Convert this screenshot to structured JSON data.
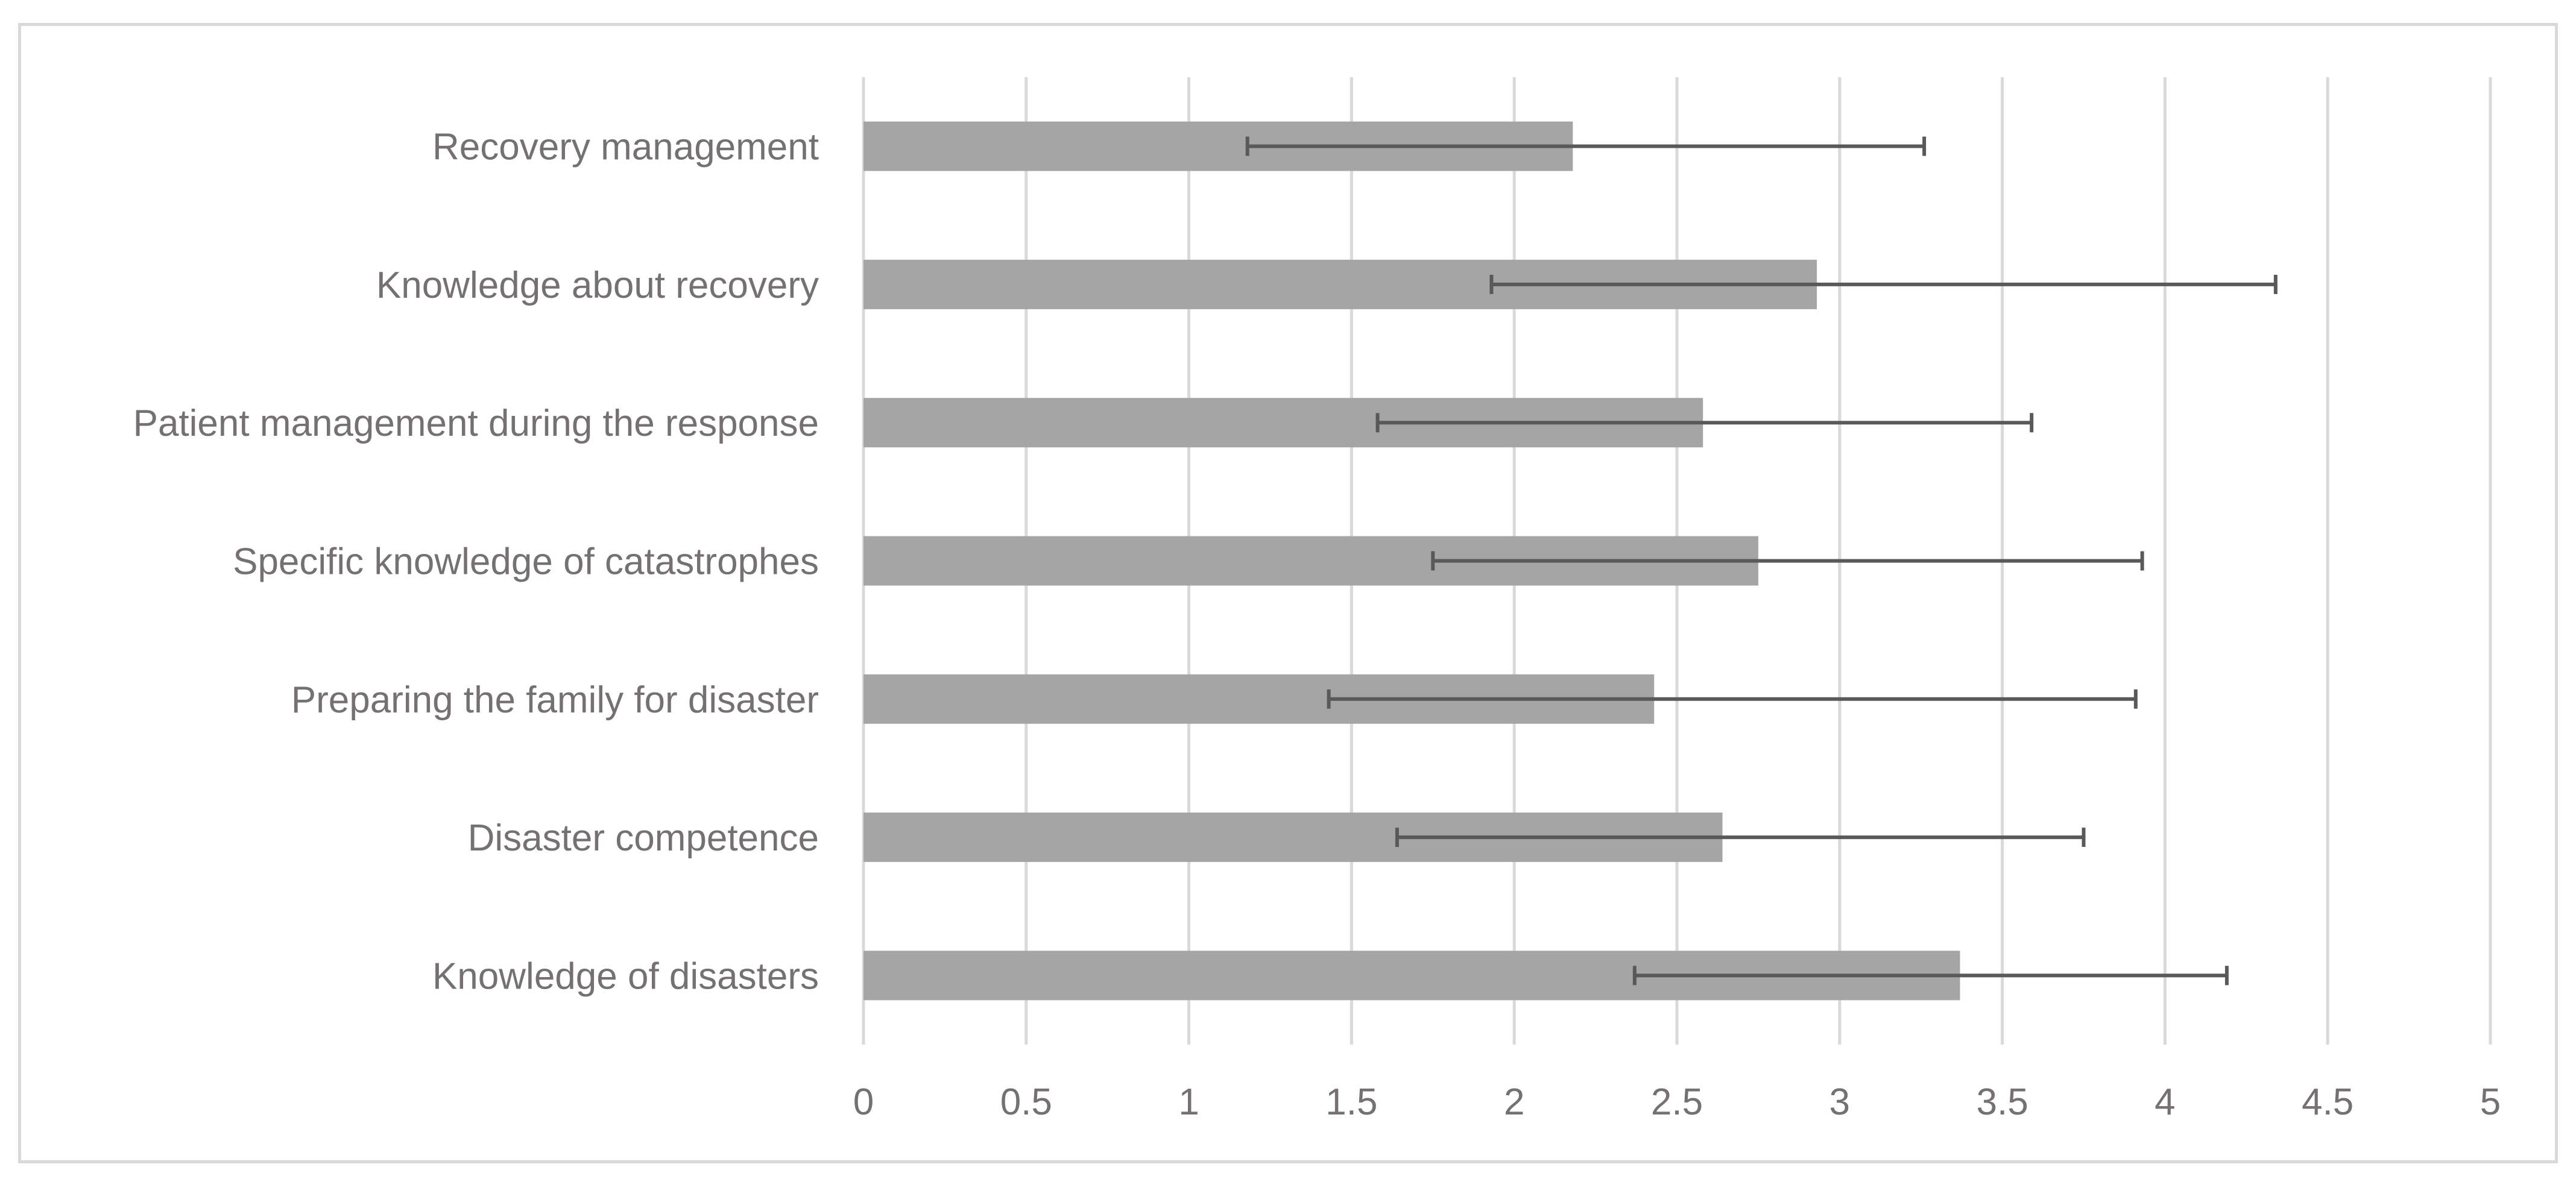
{
  "chart_data": {
    "type": "bar",
    "orientation": "horizontal",
    "title": "",
    "xlabel": "",
    "ylabel": "",
    "categories": [
      "Recovery management",
      "Knowledge about recovery",
      "Patient management during the response",
      "Specific knowledge of catastrophes",
      "Preparing the family for disaster",
      "Disaster competence",
      "Knowledge of disasters"
    ],
    "values": [
      2.18,
      2.93,
      2.58,
      2.75,
      2.43,
      2.64,
      3.37
    ],
    "error_bars": [
      {
        "low": 1.18,
        "high": 3.26
      },
      {
        "low": 1.93,
        "high": 4.34
      },
      {
        "low": 1.58,
        "high": 3.59
      },
      {
        "low": 1.75,
        "high": 3.93
      },
      {
        "low": 1.43,
        "high": 3.91
      },
      {
        "low": 1.64,
        "high": 3.75
      },
      {
        "low": 2.37,
        "high": 4.19
      }
    ],
    "xlim": [
      0,
      5
    ],
    "xticks": [
      "0",
      "0.5",
      "1",
      "1.5",
      "2",
      "2.5",
      "3",
      "3.5",
      "4",
      "4.5",
      "5"
    ],
    "xtick_values": [
      0,
      0.5,
      1,
      1.5,
      2,
      2.5,
      3,
      3.5,
      4,
      4.5,
      5
    ],
    "grid": "vertical",
    "legend": "none",
    "colors": {
      "bar": "#a5a5a5",
      "error_bar": "#595959",
      "grid": "#d9d9d9",
      "text": "#767171",
      "frame": "#d9d9d9"
    }
  }
}
